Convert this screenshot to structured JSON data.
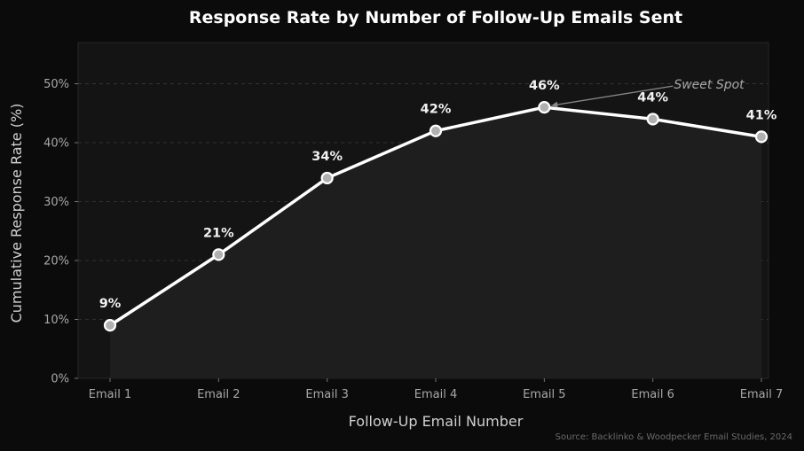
{
  "chart_data": {
    "type": "line",
    "title": "Response Rate by Number of Follow-Up Emails Sent",
    "xlabel": "Follow-Up Email Number",
    "ylabel": "Cumulative Response Rate (%)",
    "categories": [
      "Email 1",
      "Email 2",
      "Email 3",
      "Email 4",
      "Email 5",
      "Email 6",
      "Email 7"
    ],
    "values": [
      9,
      21,
      34,
      42,
      46,
      44,
      41
    ],
    "data_labels": [
      "9%",
      "21%",
      "34%",
      "42%",
      "46%",
      "44%",
      "41%"
    ],
    "ylim": [
      0,
      57
    ],
    "yticks": [
      0,
      10,
      20,
      30,
      40,
      50
    ],
    "ytick_labels": [
      "0%",
      "10%",
      "20%",
      "30%",
      "40%",
      "50%"
    ],
    "grid": true,
    "filled_area": true,
    "annotation": {
      "text": "Sweet Spot",
      "category": "Email 5",
      "value": 46
    },
    "source": "Source: Backlinko & Woodpecker Email Studies, 2024"
  },
  "colors": {
    "background": "#0b0b0b",
    "plot_background": "#141414",
    "line": "#ffffff",
    "fill": "#1f1f1f",
    "marker_fill": "#b0b0b0",
    "grid": "#3a3a3a",
    "annotation_arrow": "#888888"
  }
}
